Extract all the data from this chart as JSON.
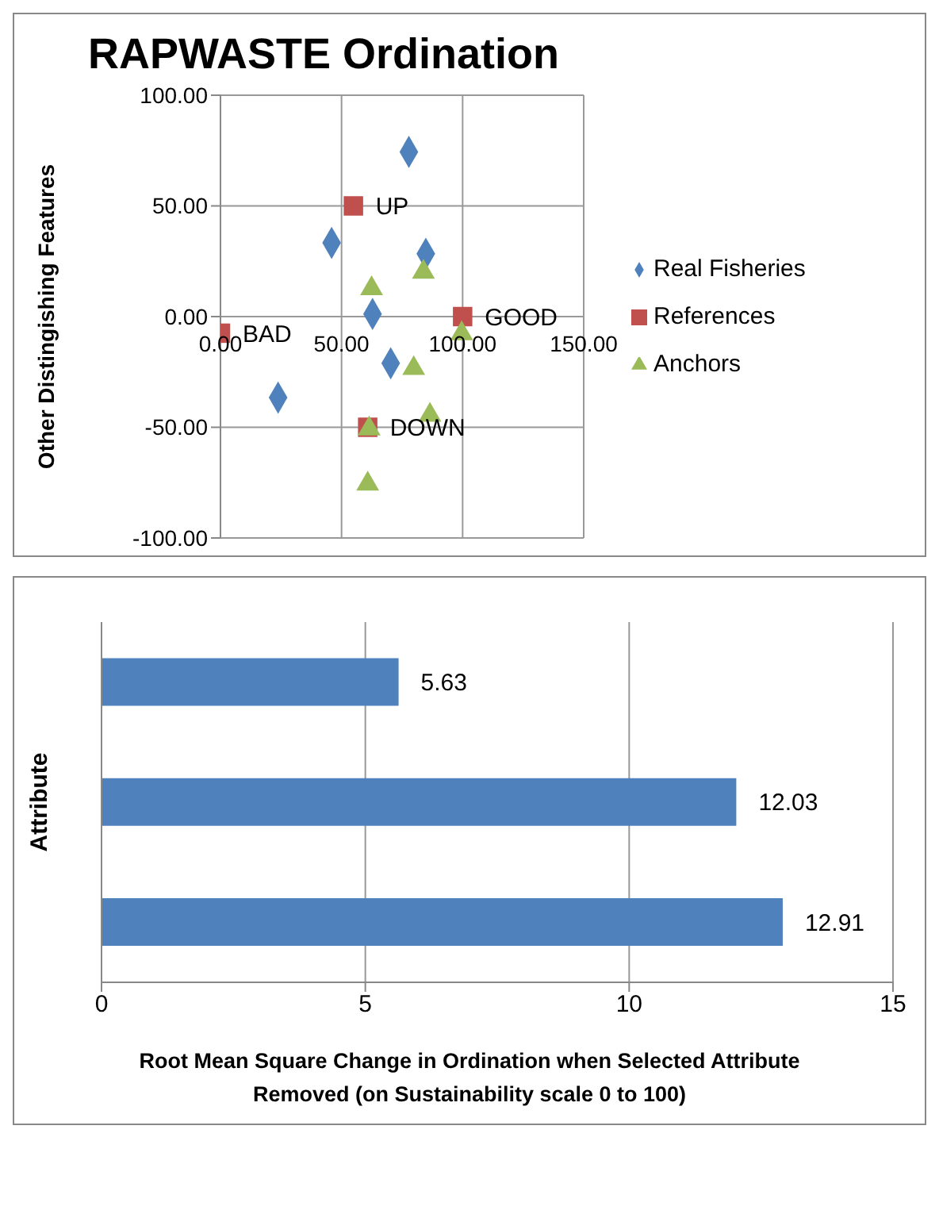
{
  "chart_data": [
    {
      "type": "scatter",
      "title": "RAPWASTE Ordination",
      "ylabel": "Other Distingishing Features",
      "xlim": [
        0,
        150
      ],
      "xticks": [
        {
          "value": 0,
          "label": "0.00"
        },
        {
          "value": 50,
          "label": "50.00"
        },
        {
          "value": 100,
          "label": "100.00"
        },
        {
          "value": 150,
          "label": "150.00"
        }
      ],
      "ylim": [
        -100,
        100
      ],
      "yticks": [
        {
          "value": -100,
          "label": "-100.00"
        },
        {
          "value": -50,
          "label": "-50.00"
        },
        {
          "value": 0,
          "label": "0.00"
        },
        {
          "value": 50,
          "label": "50.00"
        },
        {
          "value": 100,
          "label": "100.00"
        }
      ],
      "grid": true,
      "legend": "right",
      "series": [
        {
          "name": "Real Fisheries",
          "color": "#4f81bd",
          "marker": "diamond",
          "x": [
            77.8,
            45.9,
            84.8,
            62.8,
            70.3,
            23.8
          ],
          "values": [
            74.4,
            33.3,
            28.4,
            1.2,
            -21.1,
            -36.6
          ]
        },
        {
          "name": "References",
          "color": "#c0504d",
          "marker": "square",
          "x": [
            54.9,
            0,
            100,
            60.8
          ],
          "values": [
            50,
            -7.5,
            0,
            -50
          ]
        },
        {
          "name": "Anchors",
          "color": "#9bbb59",
          "marker": "triangle",
          "x": [
            62.4,
            83.8,
            99.6,
            79.8,
            86.5,
            61.4,
            60.8
          ],
          "values": [
            12.7,
            20.1,
            -7.7,
            -23.4,
            -44.5,
            -50.7,
            -75.6
          ]
        }
      ],
      "annotations": [
        {
          "text": "UP",
          "x": 54.9,
          "y": 50
        },
        {
          "text": "BAD",
          "x": 0,
          "y": -7.5
        },
        {
          "text": "GOOD",
          "x": 100,
          "y": 0
        },
        {
          "text": "DOWN",
          "x": 60.8,
          "y": -50
        }
      ]
    },
    {
      "type": "bar",
      "orientation": "horizontal",
      "categories": [
        null,
        null,
        null
      ],
      "values": [
        5.63,
        12.03,
        12.91
      ],
      "color": "#4f81bd",
      "xlim": [
        0,
        15
      ],
      "xticks": [
        0,
        5,
        10,
        15
      ],
      "grid": "x",
      "data_labels": true,
      "ylabel": "Attribute",
      "xlabel": "Root Mean Square Change in Ordination when Selected Attribute Removed (on Sustainability scale 0 to 100)"
    }
  ]
}
